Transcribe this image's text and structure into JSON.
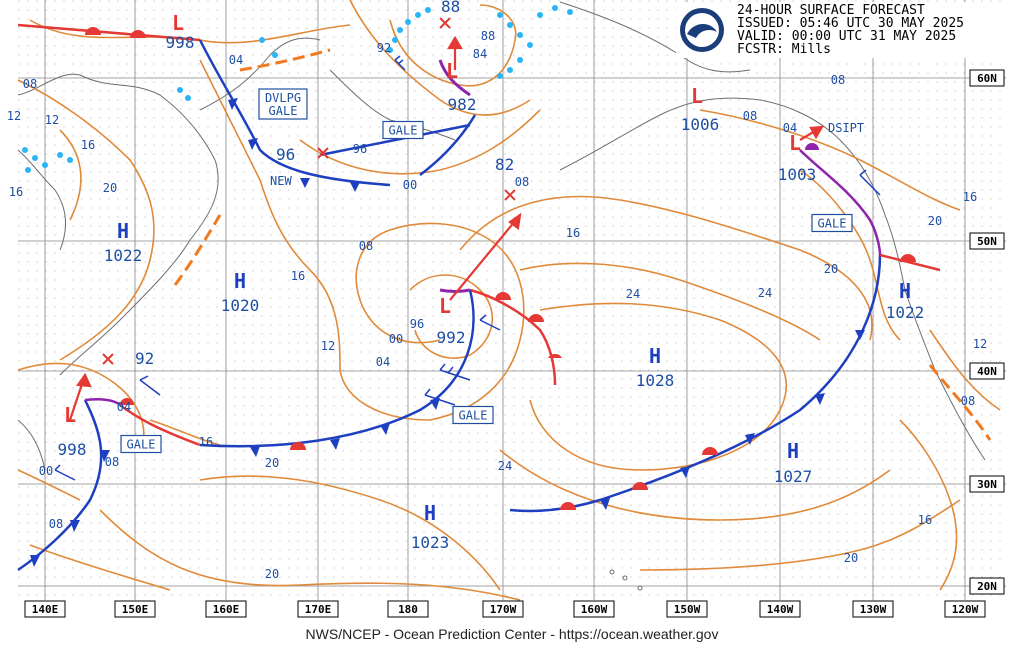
{
  "header": {
    "line1": "24-HOUR SURFACE FORECAST",
    "line2": "ISSUED: 05:46 UTC 30 MAY 2025",
    "line3": "VALID:  00:00 UTC 31 MAY 2025",
    "line4": "FCSTR:  Mills",
    "logo_text": "NOAA"
  },
  "footer": "NWS/NCEP - Ocean Prediction Center - https://ocean.weather.gov",
  "longitudes": [
    "140E",
    "150E",
    "160E",
    "170E",
    "180",
    "170W",
    "160W",
    "150W",
    "140W",
    "130W",
    "120W"
  ],
  "latitudes": [
    "60N",
    "50N",
    "40N",
    "30N",
    "20N"
  ],
  "pressure_centers": [
    {
      "type": "L",
      "value": "998",
      "kind": "red"
    },
    {
      "type": "L",
      "value": "982",
      "kind": "red"
    },
    {
      "type": "L",
      "value": "992",
      "kind": "red"
    },
    {
      "type": "L",
      "value": "998",
      "kind": "red"
    },
    {
      "type": "L",
      "value": "1006",
      "kind": "red"
    },
    {
      "type": "L",
      "value": "1003",
      "kind": "red"
    },
    {
      "type": "H",
      "value": "1022",
      "kind": "blue"
    },
    {
      "type": "H",
      "value": "1020",
      "kind": "blue"
    },
    {
      "type": "H",
      "value": "1028",
      "kind": "blue"
    },
    {
      "type": "H",
      "value": "1027",
      "kind": "blue"
    },
    {
      "type": "H",
      "value": "1023",
      "kind": "blue"
    },
    {
      "type": "H",
      "value": "1022",
      "kind": "blue"
    }
  ],
  "warnings": [
    "DVLPG\nGALE",
    "GALE",
    "GALE",
    "GALE",
    "GALE"
  ],
  "annotations": {
    "new": "NEW",
    "dsipt": "DSIPT",
    "low_92": "92",
    "low_96": "96",
    "low_88": "88",
    "low_82": "82"
  },
  "isobar_labels": [
    "08",
    "12",
    "16",
    "20",
    "04",
    "00",
    "96",
    "92",
    "88",
    "84",
    "08",
    "16",
    "24",
    "20",
    "24",
    "16",
    "12",
    "08",
    "04",
    "00",
    "96",
    "20",
    "24",
    "12",
    "16",
    "08",
    "20",
    "16",
    "20",
    "16",
    "08",
    "12",
    "08",
    "04",
    "16",
    "20",
    "00",
    "08",
    "04",
    "08"
  ]
}
